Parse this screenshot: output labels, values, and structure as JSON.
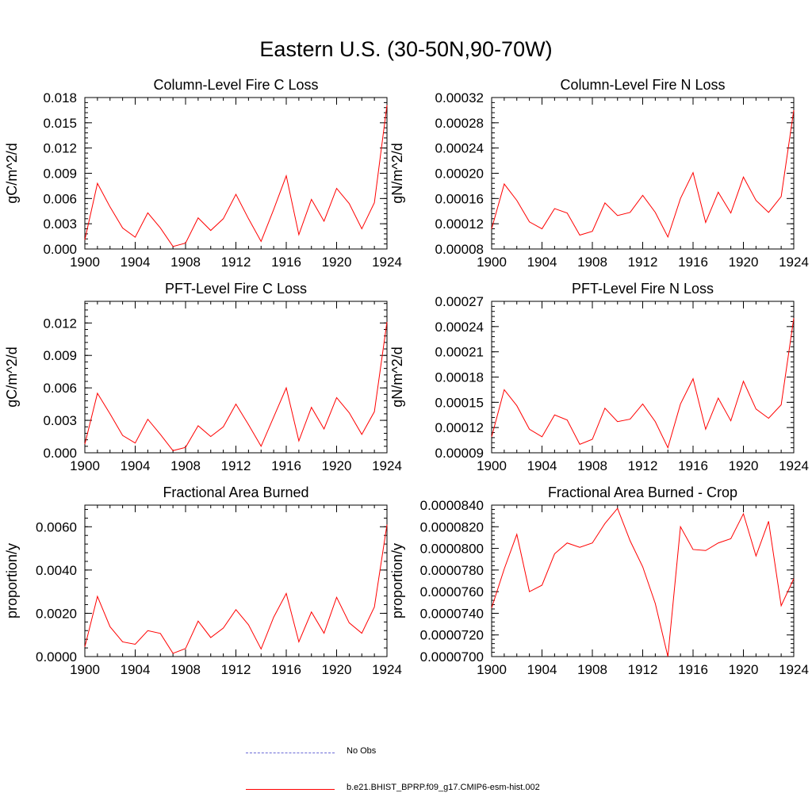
{
  "title": "Eastern U.S. (30-50N,90-70W)",
  "line_color": "#ff0000",
  "obs_color": "#6a6ad6",
  "legend": {
    "obs_label": "No Obs",
    "case_label": "b.e21.BHIST_BPRP.f09_g17.CMIP6-esm-hist.002"
  },
  "chart_data": [
    {
      "type": "line",
      "title": "Column-Level Fire C Loss",
      "xlabel": "",
      "ylabel": "gC/m^2/d",
      "xlim": [
        1900,
        1924
      ],
      "ylim": [
        0.0,
        0.018
      ],
      "xticks": [
        1900,
        1904,
        1908,
        1912,
        1916,
        1920,
        1924
      ],
      "xtick_labels": [
        "1900",
        "1904",
        "1908",
        "1912",
        "1916",
        "1920",
        "1924"
      ],
      "yticks": [
        0.0,
        0.003,
        0.006,
        0.009,
        0.012,
        0.015,
        0.018
      ],
      "ytick_labels": [
        "0.000",
        "0.003",
        "0.006",
        "0.009",
        "0.012",
        "0.015",
        "0.018"
      ],
      "x": [
        1900,
        1901,
        1902,
        1903,
        1904,
        1905,
        1906,
        1907,
        1908,
        1909,
        1910,
        1911,
        1912,
        1913,
        1914,
        1915,
        1916,
        1917,
        1918,
        1919,
        1920,
        1921,
        1922,
        1923,
        1924
      ],
      "series": [
        {
          "name": "b.e21.BHIST_BPRP.f09_g17.CMIP6-esm-hist.002",
          "values": [
            0.0011,
            0.0078,
            0.005,
            0.0025,
            0.0014,
            0.0043,
            0.0025,
            0.0003,
            0.0007,
            0.0037,
            0.0022,
            0.0036,
            0.0065,
            0.0036,
            0.0009,
            0.0047,
            0.0087,
            0.0017,
            0.0059,
            0.0033,
            0.0072,
            0.0054,
            0.0024,
            0.0055,
            0.0171
          ]
        }
      ]
    },
    {
      "type": "line",
      "title": "Column-Level Fire N Loss",
      "xlabel": "",
      "ylabel": "gN/m^2/d",
      "xlim": [
        1900,
        1924
      ],
      "ylim": [
        8e-05,
        0.00032
      ],
      "xticks": [
        1900,
        1904,
        1908,
        1912,
        1916,
        1920,
        1924
      ],
      "xtick_labels": [
        "1900",
        "1904",
        "1908",
        "1912",
        "1916",
        "1920",
        "1924"
      ],
      "yticks": [
        8e-05,
        0.00012,
        0.00016,
        0.0002,
        0.00024,
        0.00028,
        0.00032
      ],
      "ytick_labels": [
        "0.00008",
        "0.00012",
        "0.00016",
        "0.00020",
        "0.00024",
        "0.00028",
        "0.00032"
      ],
      "x": [
        1900,
        1901,
        1902,
        1903,
        1904,
        1905,
        1906,
        1907,
        1908,
        1909,
        1910,
        1911,
        1912,
        1913,
        1914,
        1915,
        1916,
        1917,
        1918,
        1919,
        1920,
        1921,
        1922,
        1923,
        1924
      ],
      "series": [
        {
          "name": "b.e21.BHIST_BPRP.f09_g17.CMIP6-esm-hist.002",
          "values": [
            0.000112,
            0.000183,
            0.000157,
            0.000123,
            0.000112,
            0.000144,
            0.000137,
            0.000102,
            0.000108,
            0.000153,
            0.000133,
            0.000138,
            0.000165,
            0.000138,
            9.9e-05,
            0.00016,
            0.000201,
            0.000122,
            0.00017,
            0.000137,
            0.000194,
            0.000157,
            0.000138,
            0.000163,
            0.0003
          ]
        }
      ]
    },
    {
      "type": "line",
      "title": "PFT-Level Fire C Loss",
      "xlabel": "",
      "ylabel": "gC/m^2/d",
      "xlim": [
        1900,
        1924
      ],
      "ylim": [
        0.0,
        0.014
      ],
      "xticks": [
        1900,
        1904,
        1908,
        1912,
        1916,
        1920,
        1924
      ],
      "xtick_labels": [
        "1900",
        "1904",
        "1908",
        "1912",
        "1916",
        "1920",
        "1924"
      ],
      "yticks": [
        0.0,
        0.003,
        0.006,
        0.009,
        0.012
      ],
      "ytick_labels": [
        "0.000",
        "0.003",
        "0.006",
        "0.009",
        "0.012"
      ],
      "x": [
        1900,
        1901,
        1902,
        1903,
        1904,
        1905,
        1906,
        1907,
        1908,
        1909,
        1910,
        1911,
        1912,
        1913,
        1914,
        1915,
        1916,
        1917,
        1918,
        1919,
        1920,
        1921,
        1922,
        1923,
        1924
      ],
      "series": [
        {
          "name": "b.e21.BHIST_BPRP.f09_g17.CMIP6-esm-hist.002",
          "values": [
            0.0008,
            0.0055,
            0.0036,
            0.0016,
            0.0009,
            0.0031,
            0.0017,
            0.0002,
            0.0005,
            0.0025,
            0.0015,
            0.0024,
            0.0045,
            0.0026,
            0.0006,
            0.0033,
            0.006,
            0.0011,
            0.0042,
            0.0022,
            0.0051,
            0.0037,
            0.0017,
            0.0038,
            0.0121
          ]
        }
      ]
    },
    {
      "type": "line",
      "title": "PFT-Level Fire N Loss",
      "xlabel": "",
      "ylabel": "gN/m^2/d",
      "xlim": [
        1900,
        1924
      ],
      "ylim": [
        9e-05,
        0.00027
      ],
      "xticks": [
        1900,
        1904,
        1908,
        1912,
        1916,
        1920,
        1924
      ],
      "xtick_labels": [
        "1900",
        "1904",
        "1908",
        "1912",
        "1916",
        "1920",
        "1924"
      ],
      "yticks": [
        9e-05,
        0.00012,
        0.00015,
        0.00018,
        0.00021,
        0.00024,
        0.00027
      ],
      "ytick_labels": [
        "0.00009",
        "0.00012",
        "0.00015",
        "0.00018",
        "0.00021",
        "0.00024",
        "0.00027"
      ],
      "x": [
        1900,
        1901,
        1902,
        1903,
        1904,
        1905,
        1906,
        1907,
        1908,
        1909,
        1910,
        1911,
        1912,
        1913,
        1914,
        1915,
        1916,
        1917,
        1918,
        1919,
        1920,
        1921,
        1922,
        1923,
        1924
      ],
      "series": [
        {
          "name": "b.e21.BHIST_BPRP.f09_g17.CMIP6-esm-hist.002",
          "values": [
            0.000109,
            0.000165,
            0.000146,
            0.000118,
            0.000109,
            0.000135,
            0.000129,
            0.0001,
            0.000106,
            0.000143,
            0.000127,
            0.00013,
            0.000148,
            0.000127,
            9.6e-05,
            0.000148,
            0.000178,
            0.000118,
            0.000155,
            0.000128,
            0.000175,
            0.000142,
            0.000131,
            0.000147,
            0.00025
          ]
        }
      ]
    },
    {
      "type": "line",
      "title": "Fractional Area Burned",
      "xlabel": "",
      "ylabel": "proportion/y",
      "xlim": [
        1900,
        1924
      ],
      "ylim": [
        0.0,
        0.007
      ],
      "xticks": [
        1900,
        1904,
        1908,
        1912,
        1916,
        1920,
        1924
      ],
      "xtick_labels": [
        "1900",
        "1904",
        "1908",
        "1912",
        "1916",
        "1920",
        "1924"
      ],
      "yticks": [
        0.0,
        0.002,
        0.004,
        0.006
      ],
      "ytick_labels": [
        "0.0000",
        "0.0020",
        "0.0040",
        "0.0060"
      ],
      "x": [
        1900,
        1901,
        1902,
        1903,
        1904,
        1905,
        1906,
        1907,
        1908,
        1909,
        1910,
        1911,
        1912,
        1913,
        1914,
        1915,
        1916,
        1917,
        1918,
        1919,
        1920,
        1921,
        1922,
        1923,
        1924
      ],
      "series": [
        {
          "name": "b.e21.BHIST_BPRP.f09_g17.CMIP6-esm-hist.002",
          "values": [
            0.00045,
            0.00278,
            0.00138,
            0.00068,
            0.00057,
            0.0012,
            0.00107,
            0.00015,
            0.00037,
            0.00164,
            0.00088,
            0.00132,
            0.00217,
            0.00147,
            0.00035,
            0.00182,
            0.00292,
            0.00068,
            0.00206,
            0.00108,
            0.00274,
            0.00156,
            0.00108,
            0.00229,
            0.0061
          ]
        }
      ]
    },
    {
      "type": "line",
      "title": "Fractional Area Burned - Crop",
      "xlabel": "",
      "ylabel": "proportion/y",
      "xlim": [
        1900,
        1924
      ],
      "ylim": [
        7e-05,
        8.4e-05
      ],
      "xticks": [
        1900,
        1904,
        1908,
        1912,
        1916,
        1920,
        1924
      ],
      "xtick_labels": [
        "1900",
        "1904",
        "1908",
        "1912",
        "1916",
        "1920",
        "1924"
      ],
      "yticks": [
        7e-05,
        7.2e-05,
        7.4e-05,
        7.6e-05,
        7.8e-05,
        8e-05,
        8.2e-05,
        8.4e-05
      ],
      "ytick_labels": [
        "0.0000700",
        "0.0000720",
        "0.0000740",
        "0.0000760",
        "0.0000780",
        "0.0000800",
        "0.0000820",
        "0.0000840"
      ],
      "x": [
        1900,
        1901,
        1902,
        1903,
        1904,
        1905,
        1906,
        1907,
        1908,
        1909,
        1910,
        1911,
        1912,
        1913,
        1914,
        1915,
        1916,
        1917,
        1918,
        1919,
        1920,
        1921,
        1922,
        1923,
        1924
      ],
      "series": [
        {
          "name": "b.e21.BHIST_BPRP.f09_g17.CMIP6-esm-hist.002",
          "values": [
            7.45e-05,
            7.81e-05,
            8.13e-05,
            7.6e-05,
            7.66e-05,
            7.95e-05,
            8.05e-05,
            8.01e-05,
            8.05e-05,
            8.23e-05,
            8.37e-05,
            8.07e-05,
            7.83e-05,
            7.49e-05,
            7e-05,
            8.2e-05,
            7.99e-05,
            7.98e-05,
            8.05e-05,
            8.09e-05,
            8.32e-05,
            7.93e-05,
            8.25e-05,
            7.47e-05,
            7.72e-05
          ]
        }
      ]
    }
  ]
}
